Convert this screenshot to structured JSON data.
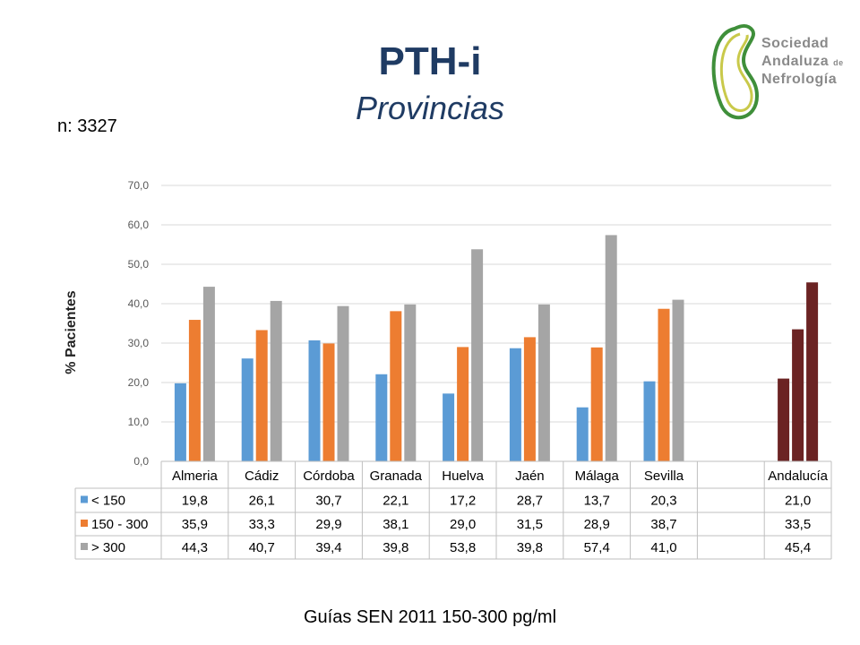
{
  "header": {
    "title": "PTH-i",
    "subtitle": "Provincias",
    "n_label": "n: 3327"
  },
  "logo": {
    "line1": "Sociedad",
    "line2": "Andaluza",
    "line2_small": "de",
    "line3": "Nefrología"
  },
  "footer": {
    "text": "Guías SEN 2011   150-300 pg/ml"
  },
  "chart_data": {
    "type": "bar",
    "ylabel": "% Pacientes",
    "ylim": [
      0,
      70
    ],
    "yticks": [
      "0,0",
      "10,0",
      "20,0",
      "30,0",
      "40,0",
      "50,0",
      "60,0",
      "70,0"
    ],
    "categories": [
      "Almeria",
      "Cádiz",
      "Córdoba",
      "Granada",
      "Huelva",
      "Jaén",
      "Málaga",
      "Sevilla",
      "",
      "Andalucía"
    ],
    "grid": true,
    "legend": "left of data table",
    "series": [
      {
        "name": "< 150",
        "color": "#5b9bd5",
        "values": [
          19.8,
          26.1,
          30.7,
          22.1,
          17.2,
          28.7,
          13.7,
          20.3,
          null,
          21.0
        ],
        "labels": [
          "19,8",
          "26,1",
          "30,7",
          "22,1",
          "17,2",
          "28,7",
          "13,7",
          "20,3",
          "",
          "21,0"
        ]
      },
      {
        "name": "150 - 300",
        "color": "#ed7d31",
        "values": [
          35.9,
          33.3,
          29.9,
          38.1,
          29.0,
          31.5,
          28.9,
          38.7,
          null,
          33.5
        ],
        "labels": [
          "35,9",
          "33,3",
          "29,9",
          "38,1",
          "29,0",
          "31,5",
          "28,9",
          "38,7",
          "",
          "33,5"
        ]
      },
      {
        "name": "> 300",
        "color": "#a5a5a5",
        "values": [
          44.3,
          40.7,
          39.4,
          39.8,
          53.8,
          39.8,
          57.4,
          41.0,
          null,
          45.4
        ],
        "labels": [
          "44,3",
          "40,7",
          "39,4",
          "39,8",
          "53,8",
          "39,8",
          "57,4",
          "41,0",
          "",
          "45,4"
        ]
      }
    ],
    "highlight": {
      "category": "Andalucía",
      "color": "#6b2323"
    }
  },
  "colors": {
    "title": "#1f3b63",
    "grid": "#d9d9d9",
    "table_border": "#bfbfbf"
  }
}
